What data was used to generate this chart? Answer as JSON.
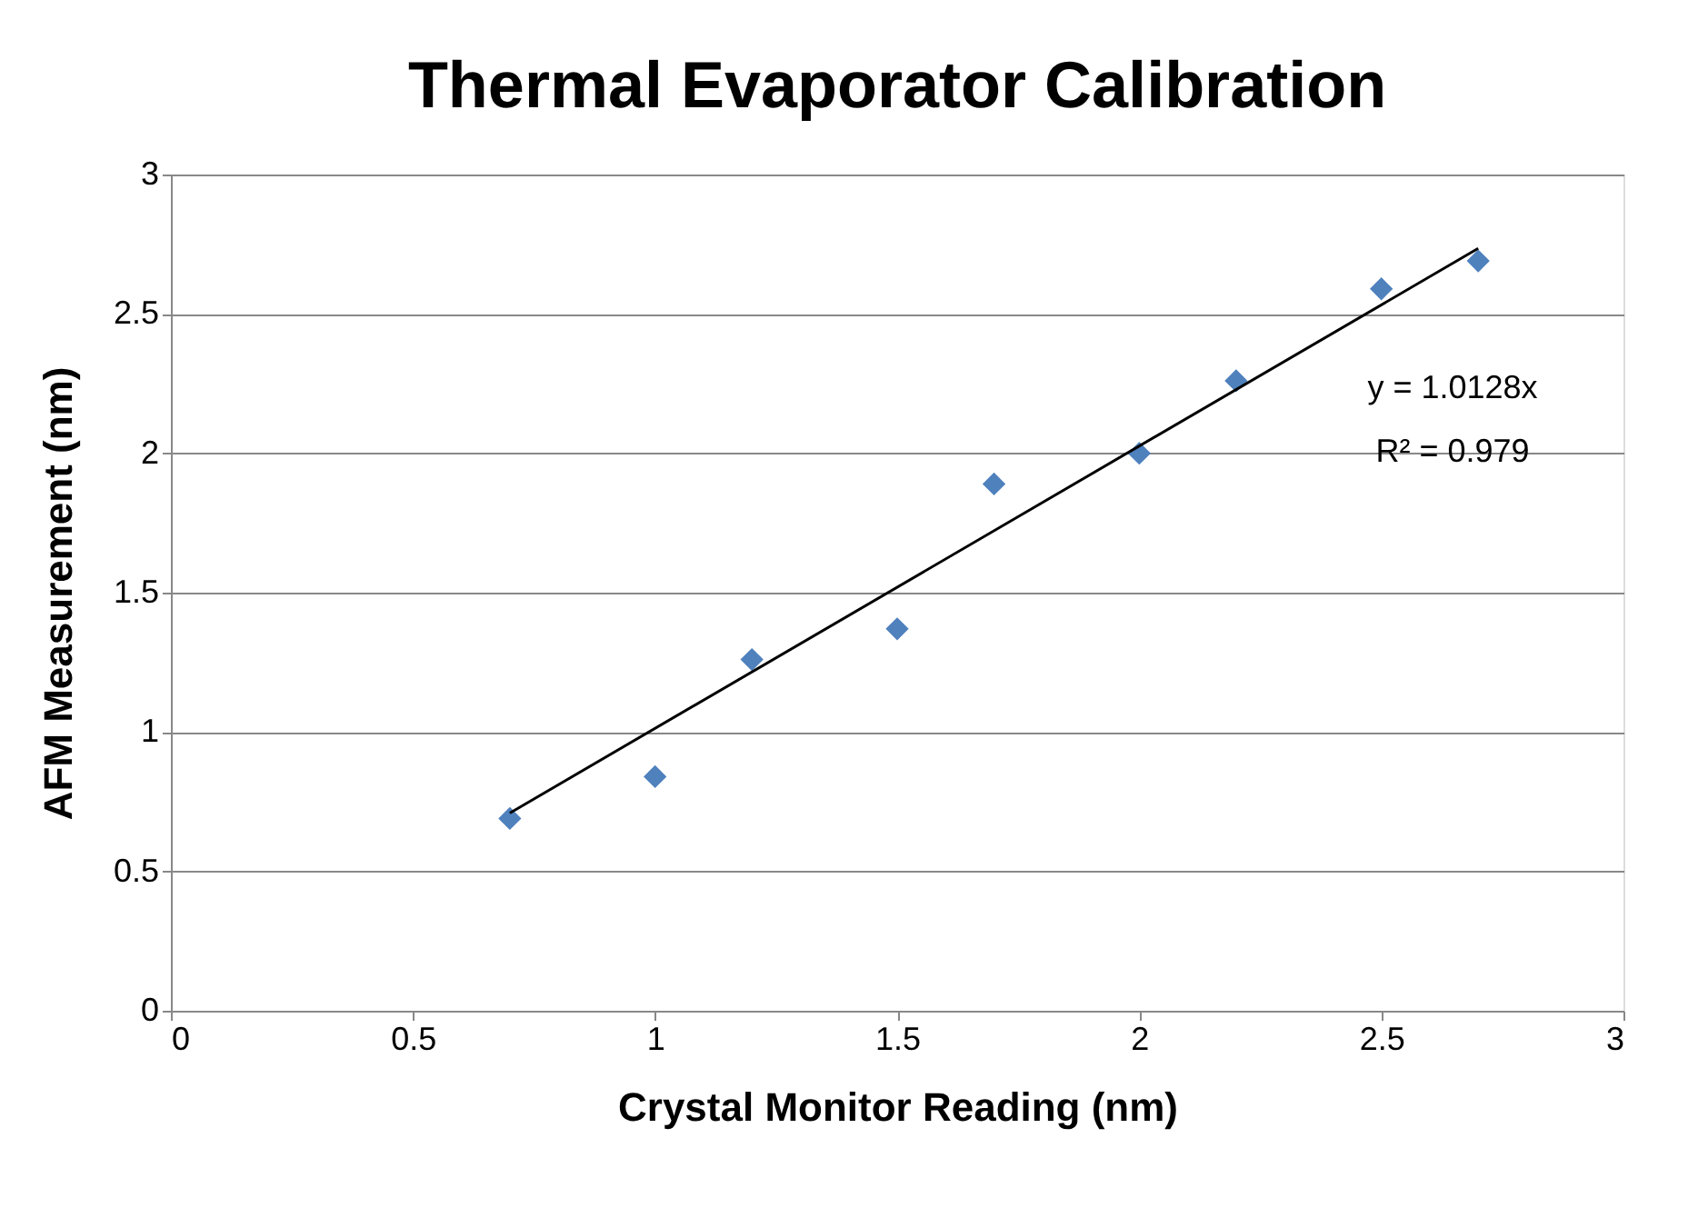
{
  "chart_data": {
    "type": "scatter",
    "title": "Thermal Evaporator Calibration",
    "xlabel": "Crystal Monitor Reading (nm)",
    "ylabel": "AFM Measurement (nm)",
    "x": [
      0.7,
      1.0,
      1.2,
      1.5,
      1.7,
      2.0,
      2.2,
      2.5,
      2.7
    ],
    "series": [
      {
        "color": "#4f81bd",
        "marker": "diamond",
        "values": [
          0.69,
          0.84,
          1.26,
          1.37,
          1.89,
          2.0,
          2.26,
          2.59,
          2.69
        ]
      },
      {
        "type": "line",
        "color": "#000000",
        "marker": "none",
        "x": [
          0.7,
          2.7
        ],
        "values": [
          0.709,
          2.735
        ]
      }
    ],
    "annotations": [
      "y = 1.0128x",
      "R² = 0.979"
    ],
    "xlim": [
      0,
      3
    ],
    "xticks": [
      0,
      0.5,
      1,
      1.5,
      2,
      2.5,
      3
    ],
    "ylim": [
      0,
      3
    ],
    "yticks": [
      0,
      0.5,
      1,
      1.5,
      2,
      2.5,
      3
    ],
    "grid": "y"
  }
}
